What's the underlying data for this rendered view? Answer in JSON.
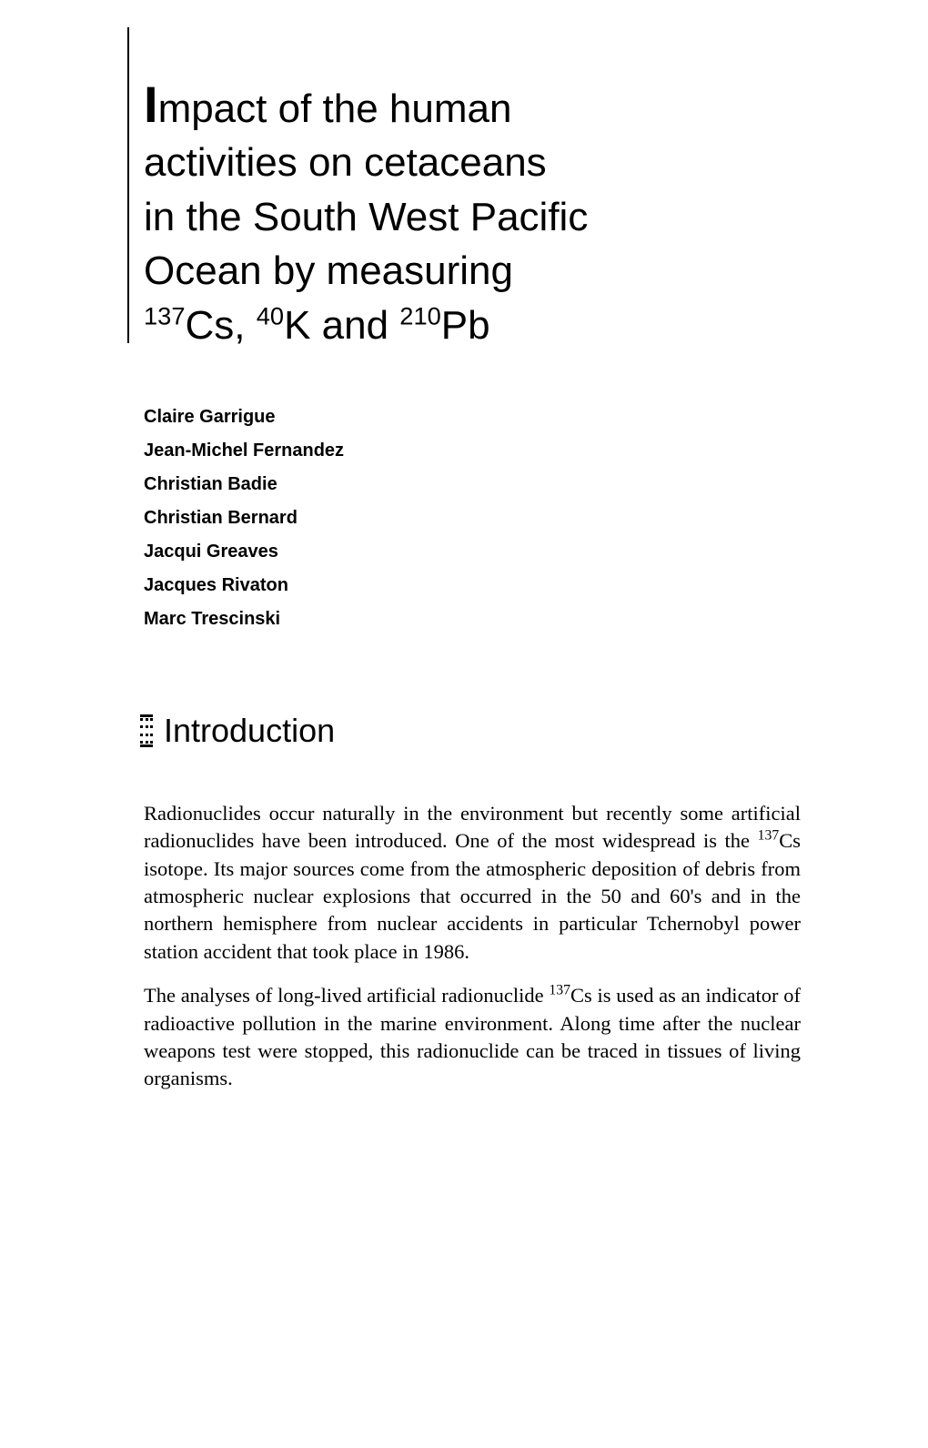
{
  "title": {
    "dropcap": "I",
    "line1_rest": "mpact of the human",
    "line2": "activities on cetaceans",
    "line3": "in the South West Pacific",
    "line4": "Ocean by measuring",
    "line5_sup1": "137",
    "line5_cs": "Cs, ",
    "line5_sup2": "40",
    "line5_k": "K and ",
    "line5_sup3": "210",
    "line5_pb": "Pb"
  },
  "authors": [
    "Claire Garrigue",
    "Jean-Michel Fernandez",
    "Christian Badie",
    "Christian Bernard",
    "Jacqui Greaves",
    "Jacques Rivaton",
    "Marc Trescinski"
  ],
  "section_heading": "Introduction",
  "paragraphs": {
    "p1_a": "Radionuclides occur naturally in the environment but recently some artificial radionuclides have been introduced. One of the most widespread is the ",
    "p1_sup": "137",
    "p1_b": "Cs isotope. Its major sources come from the atmospheric deposition of debris from atmospheric nuclear explosions that occurred in the 50 and 60's and in the northern hemisphere from nuclear accidents in particular Tchernobyl power station accident that took place in 1986.",
    "p2_a": "The analyses of long-lived artificial radionuclide ",
    "p2_sup": "137",
    "p2_b": "Cs is used as an indicator of radioactive pollution in the marine environment. Along time after the nuclear weapons test were stopped, this radionuclide can be traced in tissues of living organisms."
  }
}
